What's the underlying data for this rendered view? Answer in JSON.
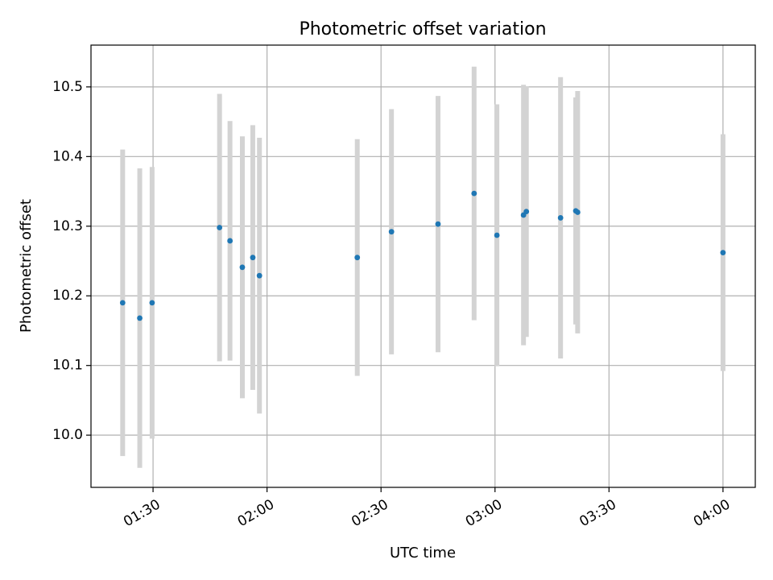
{
  "chart_data": {
    "type": "scatter",
    "title": "Photometric offset variation",
    "xlabel": "UTC time",
    "ylabel": "Photometric offset",
    "x_ticks": [
      "01:30",
      "02:00",
      "02:30",
      "03:00",
      "03:30",
      "04:00"
    ],
    "y_ticks": [
      "10.0",
      "10.1",
      "10.2",
      "10.3",
      "10.4",
      "10.5"
    ],
    "xlim": [
      "01:13:40",
      "04:08:30"
    ],
    "ylim": [
      9.925,
      10.56
    ],
    "grid": true,
    "colors": {
      "point": "#1f77b4",
      "errorbar": "#d3d3d3",
      "grid": "#b0b0b0"
    },
    "points": [
      {
        "x": "01:22:00",
        "y": 10.19,
        "yerr": 0.22
      },
      {
        "x": "01:26:30",
        "y": 10.168,
        "yerr": 0.215
      },
      {
        "x": "01:29:45",
        "y": 10.19,
        "yerr": 0.195
      },
      {
        "x": "01:47:30",
        "y": 10.298,
        "yerr": 0.192
      },
      {
        "x": "01:50:15",
        "y": 10.279,
        "yerr": 0.172
      },
      {
        "x": "01:53:30",
        "y": 10.241,
        "yerr": 0.188
      },
      {
        "x": "01:56:15",
        "y": 10.255,
        "yerr": 0.19
      },
      {
        "x": "01:58:00",
        "y": 10.229,
        "yerr": 0.198
      },
      {
        "x": "02:23:45",
        "y": 10.255,
        "yerr": 0.17
      },
      {
        "x": "02:32:45",
        "y": 10.292,
        "yerr": 0.176
      },
      {
        "x": "02:45:00",
        "y": 10.303,
        "yerr": 0.184
      },
      {
        "x": "02:54:30",
        "y": 10.347,
        "yerr": 0.182
      },
      {
        "x": "03:00:30",
        "y": 10.287,
        "yerr": 0.188
      },
      {
        "x": "03:07:30",
        "y": 10.316,
        "yerr": 0.187
      },
      {
        "x": "03:08:15",
        "y": 10.321,
        "yerr": 0.18
      },
      {
        "x": "03:17:15",
        "y": 10.312,
        "yerr": 0.202
      },
      {
        "x": "03:21:15",
        "y": 10.322,
        "yerr": 0.163
      },
      {
        "x": "03:21:45",
        "y": 10.32,
        "yerr": 0.174
      },
      {
        "x": "04:00:00",
        "y": 10.262,
        "yerr": 0.17
      }
    ]
  }
}
